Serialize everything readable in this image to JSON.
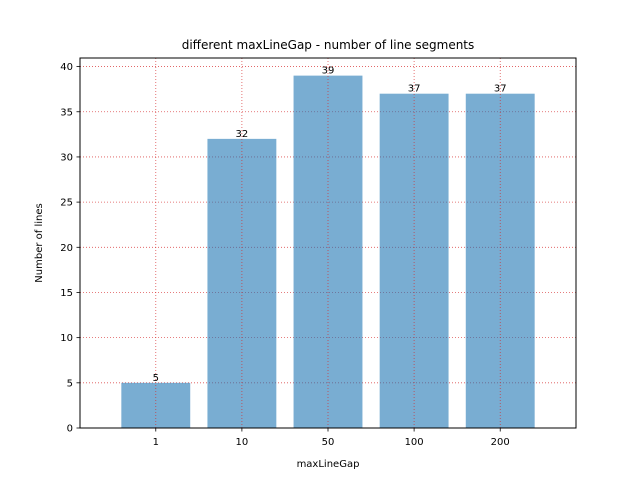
{
  "chart_data": {
    "type": "bar",
    "title": "different maxLineGap - number of line segments",
    "xlabel": "maxLineGap",
    "ylabel": "Number of lines",
    "categories": [
      "1",
      "10",
      "50",
      "100",
      "200"
    ],
    "values": [
      5,
      32,
      39,
      37,
      37
    ],
    "data_labels": [
      "5",
      "32",
      "39",
      "37",
      "37"
    ],
    "ylim": [
      0,
      40.95
    ],
    "yticks": [
      0,
      5,
      10,
      15,
      20,
      25,
      30,
      35,
      40
    ],
    "grid": true,
    "grid_color": "#d62728",
    "bar_color": "#1f77b4",
    "bar_opacity": 0.6
  }
}
